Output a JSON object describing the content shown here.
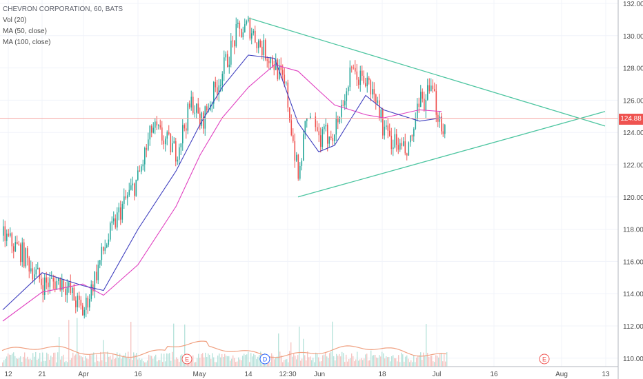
{
  "header": {
    "symbol_line": "CHEVRON CORPORATION, 60, BATS",
    "indicators": [
      "Vol (20)",
      "MA (50, close)",
      "MA (100, close)"
    ]
  },
  "price_axis": {
    "labels": [
      "132.00",
      "130.00",
      "128.00",
      "126.00",
      "124.00",
      "122.00",
      "120.00",
      "118.00",
      "116.00",
      "114.00",
      "112.00",
      "110.00"
    ],
    "current_price": "124.88"
  },
  "time_axis": {
    "labels": [
      "12",
      "21",
      "Apr",
      "16",
      "May",
      "14",
      "12:30",
      "Jun",
      "18",
      "Jul",
      "16",
      "Aug",
      "13"
    ]
  },
  "events": [
    {
      "letter": "E",
      "color": "#ef5350"
    },
    {
      "letter": "D",
      "color": "#2962ff"
    },
    {
      "letter": "E",
      "color": "#ef5350"
    }
  ],
  "colors": {
    "up": "#26a69a",
    "down": "#ef5350",
    "ma50": "#3f3fbf",
    "ma100": "#e040c0",
    "trendline": "#4cc5a0",
    "vol_ma": "#f0a080",
    "grid": "#f0f3fa",
    "axis_text": "#4a4a4a"
  },
  "chart_data": {
    "type": "candlestick",
    "title": "CHEVRON CORPORATION, 60, BATS",
    "ylim": [
      109.5,
      132.3
    ],
    "x_ticks": [
      "12",
      "21",
      "Apr",
      "16",
      "May",
      "14",
      "12:30",
      "Jun",
      "18",
      "Jul",
      "16",
      "Aug",
      "13"
    ],
    "price_path": [
      [
        "Mar 12",
        117.6
      ],
      [
        "Mar 16",
        116.6
      ],
      [
        "Mar 21",
        114.6
      ],
      [
        "Mar 27",
        114.8
      ],
      [
        "Apr 2",
        112.8
      ],
      [
        "Apr 9",
        116.8
      ],
      [
        "Apr 13",
        119.3
      ],
      [
        "Apr 16",
        121.2
      ],
      [
        "Apr 20",
        124.3
      ],
      [
        "Apr 24",
        122.8
      ],
      [
        "Apr 27",
        126.0
      ],
      [
        "May 1",
        124.5
      ],
      [
        "May 7",
        127.8
      ],
      [
        "May 11",
        130.1
      ],
      [
        "May 14",
        130.6
      ],
      [
        "May 17",
        129.5
      ],
      [
        "May 22",
        128.2
      ],
      [
        "May 25",
        126.6
      ],
      [
        "May 29",
        121.0
      ],
      [
        "May 30",
        125.2
      ],
      [
        "Jun 1",
        123.5
      ],
      [
        "Jun 5",
        124.2
      ],
      [
        "Jun 8",
        127.6
      ],
      [
        "Jun 12",
        127.2
      ],
      [
        "Jun 15",
        125.6
      ],
      [
        "Jun 18",
        124.0
      ],
      [
        "Jun 21",
        122.6
      ],
      [
        "Jun 25",
        125.8
      ],
      [
        "Jun 27",
        126.5
      ],
      [
        "Jul 2",
        124.4
      ]
    ],
    "series": [
      {
        "name": "MA (50, close)",
        "values": [
          [
            "Mar 12",
            113.0
          ],
          [
            "Mar 21",
            115.3
          ],
          [
            "Apr 2",
            114.5
          ],
          [
            "Apr 9",
            114.2
          ],
          [
            "Apr 16",
            118.0
          ],
          [
            "Apr 24",
            121.6
          ],
          [
            "May 1",
            124.5
          ],
          [
            "May 7",
            126.8
          ],
          [
            "May 14",
            128.8
          ],
          [
            "May 22",
            128.6
          ],
          [
            "May 29",
            124.6
          ],
          [
            "Jun 1",
            122.8
          ],
          [
            "Jun 5",
            123.2
          ],
          [
            "Jun 8",
            124.8
          ],
          [
            "Jun 12",
            126.3
          ],
          [
            "Jun 18",
            125.4
          ],
          [
            "Jun 25",
            124.7
          ],
          [
            "Jul 2",
            124.9
          ]
        ]
      },
      {
        "name": "MA (100, close)",
        "values": [
          [
            "Mar 12",
            112.3
          ],
          [
            "Mar 21",
            114.1
          ],
          [
            "Apr 2",
            114.6
          ],
          [
            "Apr 9",
            113.9
          ],
          [
            "Apr 16",
            115.8
          ],
          [
            "Apr 24",
            119.4
          ],
          [
            "May 1",
            122.6
          ],
          [
            "May 7",
            124.9
          ],
          [
            "May 14",
            126.8
          ],
          [
            "May 22",
            128.2
          ],
          [
            "May 29",
            127.8
          ],
          [
            "Jun 1",
            126.6
          ],
          [
            "Jun 5",
            125.7
          ],
          [
            "Jun 8",
            125.4
          ],
          [
            "Jun 12",
            125.1
          ],
          [
            "Jun 18",
            124.9
          ],
          [
            "Jun 25",
            125.4
          ],
          [
            "Jul 2",
            125.3
          ]
        ]
      }
    ],
    "trendlines": [
      {
        "from": [
          "May 14",
          131.1
        ],
        "to": [
          "Aug 13",
          124.4
        ]
      },
      {
        "from": [
          "May 29",
          120.0
        ],
        "to": [
          "Aug 13",
          125.3
        ]
      }
    ],
    "horizontal_line": 124.88,
    "volume": {
      "name": "Vol (20)"
    },
    "grid": true
  }
}
